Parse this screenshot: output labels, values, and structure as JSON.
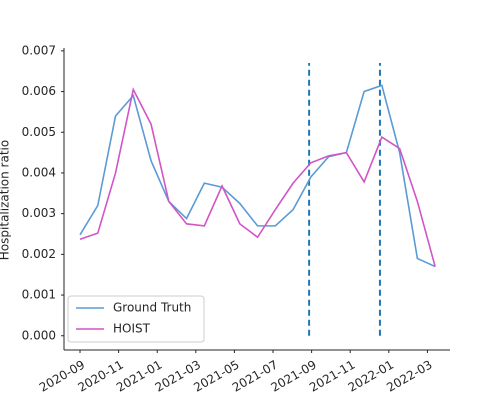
{
  "chart_data": {
    "type": "line",
    "y_label": "Hospitalization ratio",
    "x": [
      0,
      0.92,
      1.84,
      2.76,
      3.68,
      4.6,
      5.52,
      6.44,
      7.36,
      8.28,
      9.2,
      10.12,
      11.04,
      11.96,
      12.88,
      13.8,
      14.72,
      15.64,
      16.56,
      17.48,
      18.4
    ],
    "series": [
      {
        "name": "Ground Truth",
        "color": "#5b9bd5",
        "values": [
          0.00248,
          0.0032,
          0.0054,
          0.0059,
          0.0043,
          0.0033,
          0.00288,
          0.00375,
          0.00365,
          0.00325,
          0.0027,
          0.0027,
          0.0031,
          0.0039,
          0.0044,
          0.0045,
          0.006,
          0.00615,
          0.0045,
          0.0019,
          0.0017
        ]
      },
      {
        "name": "HOIST",
        "color": "#d155c6",
        "values": [
          0.00237,
          0.00252,
          0.004,
          0.00605,
          0.0052,
          0.0033,
          0.00275,
          0.0027,
          0.00368,
          0.00275,
          0.00242,
          0.0031,
          0.00375,
          0.00425,
          0.00442,
          0.0045,
          0.00378,
          0.00488,
          0.0046,
          0.0033,
          0.0017
        ]
      }
    ],
    "vlines": [
      11.87,
      15.54
    ],
    "vline_range": [
      0,
      0.0067
    ],
    "vline_color": "#1f77b4",
    "xlim": [
      -0.83,
      19.17
    ],
    "xticks": [
      {
        "value": 0,
        "label": "2020-09"
      },
      {
        "value": 2,
        "label": "2020-11"
      },
      {
        "value": 4,
        "label": "2021-01"
      },
      {
        "value": 6,
        "label": "2021-03"
      },
      {
        "value": 8,
        "label": "2021-05"
      },
      {
        "value": 10,
        "label": "2021-07"
      },
      {
        "value": 12,
        "label": "2021-09"
      },
      {
        "value": 14,
        "label": "2021-11"
      },
      {
        "value": 16,
        "label": "2022-01"
      },
      {
        "value": 18,
        "label": "2022-03"
      }
    ],
    "ylim": [
      -0.00035,
      0.00707
    ],
    "yticks": [
      {
        "value": 0,
        "label": "0.000"
      },
      {
        "value": 0.001,
        "label": "0.001"
      },
      {
        "value": 0.002,
        "label": "0.002"
      },
      {
        "value": 0.003,
        "label": "0.003"
      },
      {
        "value": 0.004,
        "label": "0.004"
      },
      {
        "value": 0.005,
        "label": "0.005"
      },
      {
        "value": 0.006,
        "label": "0.006"
      },
      {
        "value": 0.007,
        "label": "0.007"
      }
    ],
    "legend": "lower left"
  }
}
